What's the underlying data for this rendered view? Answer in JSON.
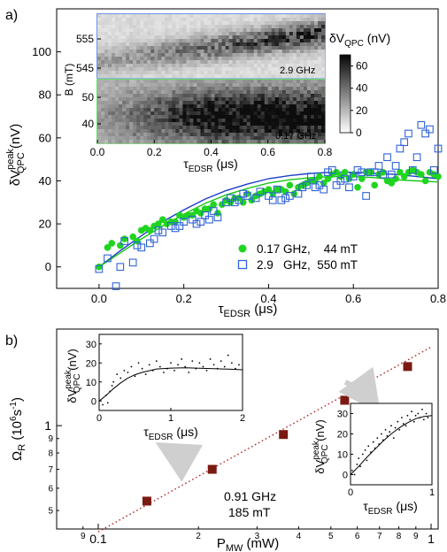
{
  "chart_data": [
    {
      "panel": "a)",
      "type": "scatter",
      "xlabel_main": "τ",
      "xlabel_sub": "EDSR",
      "xlabel_unit": " (μs)",
      "ylabel_main": "δV",
      "ylabel_sup": "peak",
      "ylabel_sub": "QPC",
      "ylabel_unit": " (nV)",
      "xlim": [
        -0.1,
        0.8
      ],
      "ylim": [
        -10,
        120
      ],
      "xticks": [
        "0.0",
        "0.2",
        "0.4",
        "0.6",
        "0.8"
      ],
      "yticks": [
        "0",
        "20",
        "40",
        "60",
        "80",
        "100"
      ],
      "series": [
        {
          "name": "0.17 GHz,    44 mT",
          "marker": "filled-circle",
          "color": "#1fd51f",
          "x": [
            0.0,
            0.02,
            0.03,
            0.05,
            0.06,
            0.08,
            0.09,
            0.1,
            0.11,
            0.12,
            0.13,
            0.14,
            0.15,
            0.16,
            0.17,
            0.18,
            0.19,
            0.2,
            0.21,
            0.22,
            0.23,
            0.24,
            0.25,
            0.26,
            0.27,
            0.28,
            0.29,
            0.3,
            0.31,
            0.32,
            0.33,
            0.34,
            0.35,
            0.36,
            0.37,
            0.38,
            0.39,
            0.4,
            0.41,
            0.42,
            0.43,
            0.44,
            0.45,
            0.46,
            0.47,
            0.48,
            0.49,
            0.5,
            0.51,
            0.52,
            0.53,
            0.54,
            0.55,
            0.56,
            0.57,
            0.58,
            0.59,
            0.6,
            0.61,
            0.62,
            0.63,
            0.64,
            0.65,
            0.66,
            0.67,
            0.68,
            0.69,
            0.7,
            0.71,
            0.72,
            0.73,
            0.74,
            0.75,
            0.76,
            0.77,
            0.78,
            0.79,
            0.8
          ],
          "y": [
            0,
            9,
            11,
            10,
            13,
            14,
            12,
            17,
            18,
            17,
            19,
            20,
            22,
            20,
            21,
            21,
            24,
            23,
            24,
            24,
            26,
            25,
            27,
            27,
            29,
            25,
            29,
            31,
            30,
            32,
            32,
            30,
            34,
            31,
            33,
            34,
            35,
            36,
            34,
            36,
            36,
            35,
            38,
            34,
            37,
            38,
            39,
            40,
            40,
            42,
            39,
            41,
            43,
            44,
            42,
            44,
            41,
            43,
            37,
            41,
            44,
            44,
            38,
            43,
            44,
            40,
            39,
            41,
            44,
            42,
            44,
            45,
            44,
            43,
            40,
            44,
            43,
            42
          ]
        },
        {
          "name": "2.9   GHz,  550 mT",
          "marker": "open-square",
          "color": "#2f63d8",
          "x": [
            0.0,
            0.02,
            0.04,
            0.05,
            0.06,
            0.08,
            0.09,
            0.1,
            0.12,
            0.13,
            0.14,
            0.15,
            0.17,
            0.18,
            0.19,
            0.2,
            0.22,
            0.23,
            0.24,
            0.25,
            0.26,
            0.27,
            0.28,
            0.3,
            0.31,
            0.32,
            0.33,
            0.34,
            0.35,
            0.37,
            0.38,
            0.4,
            0.41,
            0.42,
            0.43,
            0.44,
            0.45,
            0.47,
            0.48,
            0.49,
            0.5,
            0.51,
            0.52,
            0.53,
            0.54,
            0.55,
            0.56,
            0.57,
            0.58,
            0.59,
            0.6,
            0.61,
            0.62,
            0.63,
            0.64,
            0.65,
            0.66,
            0.67,
            0.68,
            0.69,
            0.7,
            0.71,
            0.72,
            0.73,
            0.74,
            0.75,
            0.76,
            0.77,
            0.78,
            0.79,
            0.8
          ],
          "y": [
            -1,
            4,
            -9,
            0,
            12,
            2,
            10,
            9,
            11,
            13,
            17,
            16,
            19,
            18,
            19,
            21,
            22,
            20,
            21,
            24,
            22,
            26,
            23,
            30,
            32,
            30,
            31,
            34,
            33,
            32,
            35,
            33,
            31,
            36,
            31,
            32,
            33,
            34,
            37,
            38,
            42,
            37,
            38,
            36,
            44,
            45,
            38,
            40,
            41,
            37,
            42,
            45,
            44,
            33,
            44,
            44,
            47,
            43,
            51,
            43,
            47,
            55,
            58,
            62,
            45,
            51,
            66,
            62,
            64,
            45,
            55
          ]
        },
        {
          "name": "fit-blue",
          "type": "line",
          "color": "#1e3fc8",
          "x": [
            0.0,
            0.05,
            0.1,
            0.15,
            0.2,
            0.25,
            0.3,
            0.35,
            0.4,
            0.45,
            0.5,
            0.55,
            0.6,
            0.65,
            0.7,
            0.75,
            0.8
          ],
          "y": [
            0,
            7.5,
            14.5,
            21,
            26.5,
            31.5,
            35.5,
            38.5,
            41,
            42.5,
            43.5,
            44,
            44,
            43.5,
            43,
            42,
            41
          ]
        },
        {
          "name": "fit-green",
          "type": "line",
          "color": "#16c516",
          "x": [
            0.0,
            0.05,
            0.1,
            0.15,
            0.2,
            0.25,
            0.3,
            0.35,
            0.4,
            0.45,
            0.5,
            0.55,
            0.6,
            0.65,
            0.7,
            0.75,
            0.8
          ],
          "y": [
            0,
            6.5,
            13,
            19,
            24.5,
            29.5,
            33.5,
            36.5,
            39,
            40.5,
            41.5,
            42,
            42,
            41.5,
            40.5,
            40,
            39.5
          ]
        }
      ],
      "inset": {
        "type": "heatmap",
        "xlabel_main": "τ",
        "xlabel_sub": "EDSR",
        "xlabel_unit": " (μs)",
        "ylabel": "B (mT)",
        "xlim": [
          0.0,
          0.8
        ],
        "xticks": [
          "0.0",
          "0.2",
          "0.4",
          "0.6",
          "0.8"
        ],
        "top": {
          "label": "2.9 GHz",
          "yticks": [
            "555",
            "545"
          ],
          "border": "#3a6fe0"
        },
        "bottom": {
          "label": "0.17 GHz",
          "yticks": [
            "50",
            "40"
          ],
          "border": "#35d335"
        },
        "colorbar": {
          "title_main": "δV",
          "title_sub": "QPC",
          "title_unit": " (nV)",
          "ticks": [
            "60",
            "40",
            "20",
            "0"
          ],
          "range": [
            0,
            70
          ]
        }
      }
    },
    {
      "panel": "b)",
      "type": "scatter",
      "scale": "log-log",
      "xlabel_main": "P",
      "xlabel_sub": "MW",
      "xlabel_unit": " (mW)",
      "ylabel_main": "Ω",
      "ylabel_sub": "R",
      "ylabel_unit": " (10",
      "ylabel_exp": "6",
      "ylabel_tail": "s",
      "ylabel_tail_exp": "-1",
      "ylabel_close": ")",
      "xlim": [
        0.075,
        1.05
      ],
      "ylim": [
        0.43,
        2.2
      ],
      "xtick_labels": [
        "0.1",
        "1"
      ],
      "xtick_minor_labels": [
        "9",
        "2",
        "3",
        "4",
        "5",
        "6",
        "7",
        "8",
        "9"
      ],
      "ytick_labels": [
        "1"
      ],
      "ytick_minor_labels": [
        "5",
        "6",
        "7",
        "8",
        "9"
      ],
      "points": {
        "color": "#7a1a12",
        "x": [
          0.14,
          0.22,
          0.36,
          0.55,
          0.85
        ],
        "y": [
          0.54,
          0.7,
          0.93,
          1.23,
          1.62
        ]
      },
      "fit_line": {
        "color": "#b02222",
        "x": [
          0.1,
          1.0
        ],
        "y": [
          0.42,
          1.9
        ]
      },
      "annotation_line1": "0.91 GHz",
      "annotation_line2": "185 mT",
      "inset_left": {
        "xlim": [
          0,
          2
        ],
        "ylim": [
          -5,
          35
        ],
        "xticks": [
          "0",
          "1",
          "2"
        ],
        "yticks": [
          "0",
          "10",
          "20",
          "30"
        ],
        "ylabel_main": "δV",
        "ylabel_sup": "peak",
        "ylabel_sub": "QPC",
        "ylabel_unit": " (nV)",
        "xlabel_main": "τ",
        "xlabel_sub": "EDSR",
        "xlabel_unit": " (μs)",
        "x": [
          0.05,
          0.1,
          0.12,
          0.15,
          0.18,
          0.2,
          0.25,
          0.3,
          0.35,
          0.4,
          0.45,
          0.5,
          0.55,
          0.6,
          0.65,
          0.7,
          0.75,
          0.8,
          0.85,
          0.9,
          0.95,
          1.0,
          1.05,
          1.1,
          1.15,
          1.2,
          1.25,
          1.3,
          1.35,
          1.4,
          1.45,
          1.5,
          1.55,
          1.6,
          1.65,
          1.7,
          1.75,
          1.8,
          1.85,
          1.9,
          1.95
        ],
        "y": [
          -2,
          3,
          -1,
          5,
          8,
          10,
          14,
          12,
          16,
          15,
          18,
          13,
          20,
          17,
          14,
          19,
          16,
          21,
          18,
          15,
          17,
          20,
          16,
          19,
          22,
          18,
          15,
          21,
          17,
          20,
          18,
          16,
          22,
          19,
          17,
          21,
          18,
          24,
          20,
          17,
          19
        ],
        "fit_x": [
          0.0,
          0.1,
          0.2,
          0.3,
          0.4,
          0.5,
          0.6,
          0.8,
          1.0,
          1.2,
          1.4,
          1.6,
          1.8,
          2.0
        ],
        "fit_y": [
          0,
          3,
          6.5,
          9.5,
          12,
          13.8,
          15,
          16.8,
          17.3,
          17.4,
          17.2,
          17,
          16.7,
          16.4
        ]
      },
      "inset_right": {
        "xlim": [
          0,
          1
        ],
        "ylim": [
          -5,
          35
        ],
        "xticks": [
          "0",
          "1"
        ],
        "yticks": [
          "0",
          "10",
          "20",
          "30"
        ],
        "ylabel_main": "δV",
        "ylabel_sup": "peak",
        "ylabel_sub": "QPC",
        "ylabel_unit": " (nV)",
        "xlabel_main": "τ",
        "xlabel_sub": "EDSR",
        "xlabel_unit": " (μs)",
        "x": [
          0.02,
          0.05,
          0.08,
          0.1,
          0.12,
          0.15,
          0.18,
          0.2,
          0.22,
          0.25,
          0.28,
          0.3,
          0.33,
          0.35,
          0.38,
          0.4,
          0.43,
          0.45,
          0.48,
          0.5,
          0.53,
          0.55,
          0.58,
          0.6,
          0.63,
          0.65,
          0.68,
          0.7,
          0.73,
          0.75,
          0.78,
          0.8,
          0.83,
          0.85,
          0.88,
          0.9,
          0.93,
          0.95
        ],
        "y": [
          2,
          0,
          5,
          8,
          4,
          10,
          12,
          7,
          14,
          11,
          16,
          13,
          18,
          15,
          20,
          17,
          22,
          19,
          21,
          24,
          18,
          23,
          26,
          22,
          28,
          25,
          24,
          29,
          27,
          31,
          26,
          29,
          30,
          28,
          32,
          27,
          30,
          28
        ],
        "fit_x": [
          0.0,
          0.1,
          0.2,
          0.3,
          0.4,
          0.5,
          0.6,
          0.7,
          0.8,
          0.9,
          1.0
        ],
        "fit_y": [
          0,
          4,
          8.5,
          12.5,
          16.5,
          20,
          23,
          25.5,
          27.5,
          28.5,
          29
        ]
      }
    }
  ]
}
